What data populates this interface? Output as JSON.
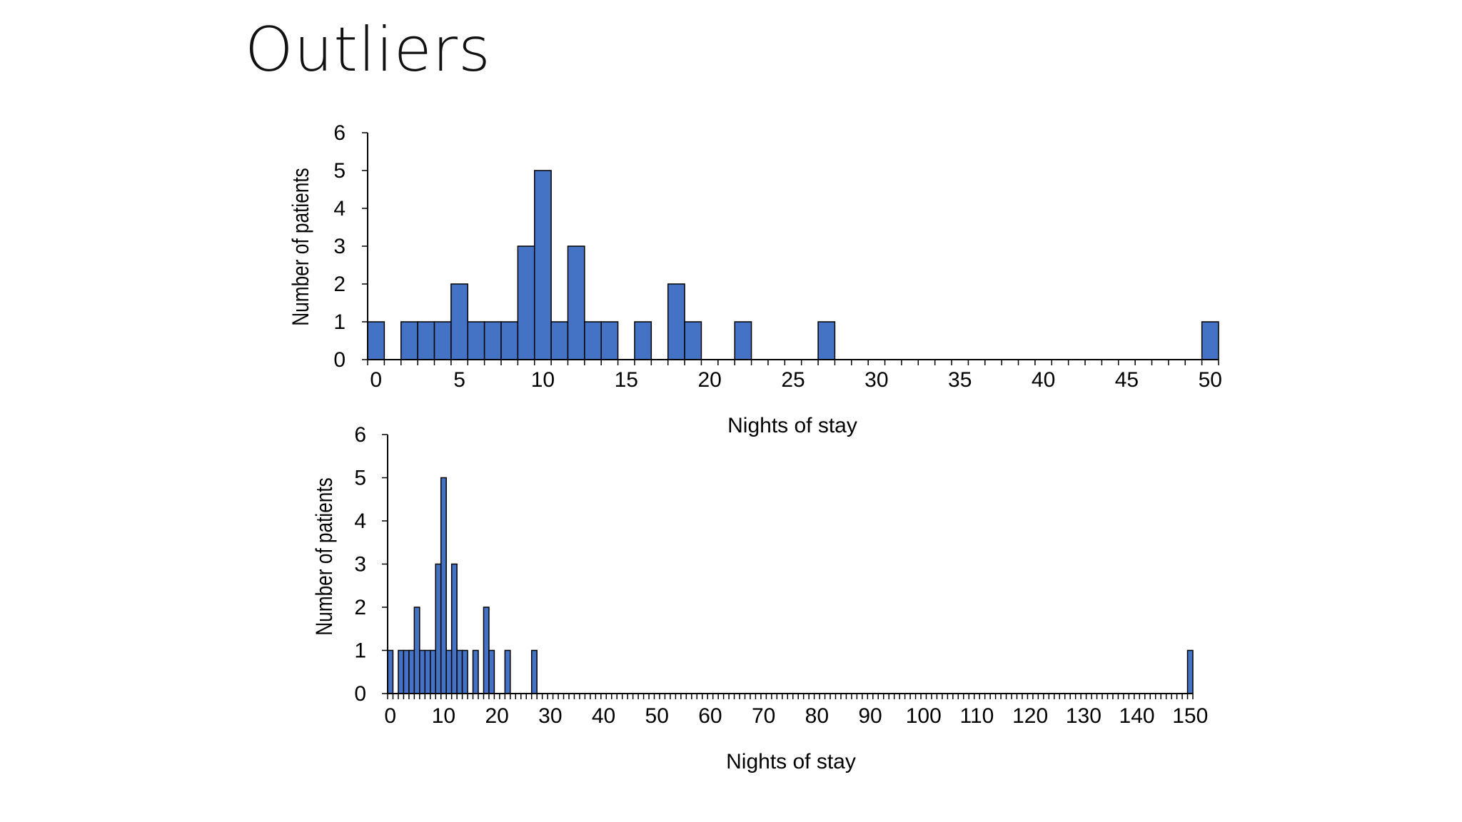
{
  "slide": {
    "title": "Outliers"
  },
  "chart_data": [
    {
      "type": "bar",
      "title": "",
      "xlabel": "Nights of stay",
      "ylabel": "Number of patients",
      "bin_width": 1,
      "xlim": [
        -0.5,
        50.5
      ],
      "ylim": [
        0,
        6
      ],
      "yticks": [
        0,
        1,
        2,
        3,
        4,
        5,
        6
      ],
      "xtick_labels": [
        "0",
        "5",
        "10",
        "15",
        "20",
        "25",
        "30",
        "35",
        "40",
        "45",
        "50"
      ],
      "xtick_values": [
        0,
        5,
        10,
        15,
        20,
        25,
        30,
        35,
        40,
        45,
        50
      ],
      "x": [
        0,
        2,
        3,
        4,
        5,
        6,
        7,
        8,
        9,
        10,
        11,
        12,
        13,
        14,
        16,
        18,
        19,
        22,
        27,
        50
      ],
      "values": [
        1,
        1,
        1,
        1,
        2,
        1,
        1,
        1,
        3,
        5,
        1,
        3,
        1,
        1,
        1,
        2,
        1,
        1,
        1,
        1
      ]
    },
    {
      "type": "bar",
      "title": "",
      "xlabel": "Nights of stay",
      "ylabel": "Number of patients",
      "bin_width": 1,
      "xlim": [
        -0.5,
        150.5
      ],
      "ylim": [
        0,
        6
      ],
      "yticks": [
        0,
        1,
        2,
        3,
        4,
        5,
        6
      ],
      "xtick_labels": [
        "0",
        "10",
        "20",
        "30",
        "40",
        "50",
        "60",
        "70",
        "80",
        "90",
        "100",
        "110",
        "120",
        "130",
        "140",
        "150"
      ],
      "xtick_values": [
        0,
        10,
        20,
        30,
        40,
        50,
        60,
        70,
        80,
        90,
        100,
        110,
        120,
        130,
        140,
        150
      ],
      "x": [
        0,
        2,
        3,
        4,
        5,
        6,
        7,
        8,
        9,
        10,
        11,
        12,
        13,
        14,
        16,
        18,
        19,
        22,
        27,
        150
      ],
      "values": [
        1,
        1,
        1,
        1,
        2,
        1,
        1,
        1,
        3,
        5,
        1,
        3,
        1,
        1,
        1,
        2,
        1,
        1,
        1,
        1
      ]
    }
  ],
  "colors": {
    "bar_fill": "#4472C4",
    "bar_stroke": "#000000",
    "axis": "#000000"
  }
}
